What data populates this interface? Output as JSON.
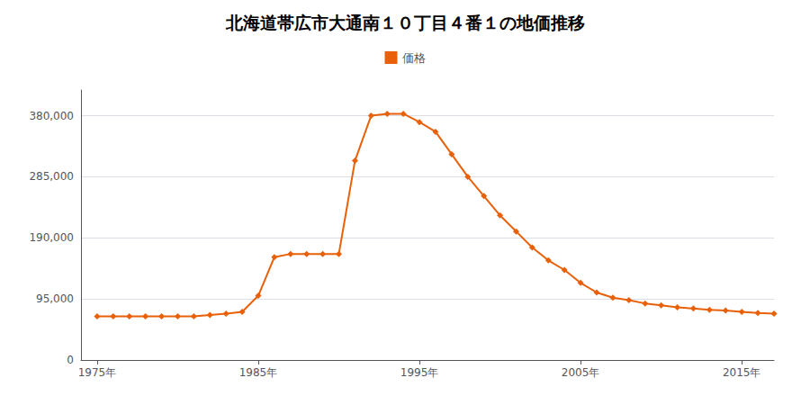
{
  "chart_data": {
    "type": "line",
    "title": "北海道帯広市大通南１０丁目４番１の地価推移",
    "x": [
      1975,
      1976,
      1977,
      1978,
      1979,
      1980,
      1981,
      1982,
      1983,
      1984,
      1985,
      1986,
      1987,
      1988,
      1989,
      1990,
      1991,
      1992,
      1993,
      1994,
      1995,
      1996,
      1997,
      1998,
      1999,
      2000,
      2001,
      2002,
      2003,
      2004,
      2005,
      2006,
      2007,
      2008,
      2009,
      2010,
      2011,
      2012,
      2013,
      2014,
      2015,
      2016,
      2017
    ],
    "series": [
      {
        "name": "価格",
        "color": "#e8610a",
        "marker": "diamond",
        "values": [
          68000,
          68000,
          68000,
          68000,
          68000,
          68000,
          68000,
          70000,
          72000,
          75000,
          100000,
          160000,
          165000,
          165000,
          165000,
          165000,
          310000,
          380000,
          383000,
          383000,
          370000,
          355000,
          320000,
          285000,
          255000,
          225000,
          200000,
          175000,
          155000,
          140000,
          120000,
          105000,
          97000,
          93000,
          88000,
          85000,
          82000,
          80000,
          78000,
          77000,
          75000,
          73000,
          72000
        ]
      }
    ],
    "xlim": [
      1974,
      2017
    ],
    "xticks": [
      {
        "value": 1975,
        "label": "1975年"
      },
      {
        "value": 1985,
        "label": "1985年"
      },
      {
        "value": 1995,
        "label": "1995年"
      },
      {
        "value": 2005,
        "label": "2005年"
      },
      {
        "value": 2015,
        "label": "2015年"
      }
    ],
    "ylim": [
      0,
      420000
    ],
    "yticks": [
      0,
      {
        "value": 95000,
        "label": "95,000"
      },
      {
        "value": 190000,
        "label": "190,000"
      },
      {
        "value": 285000,
        "label": "285,000"
      },
      {
        "value": 380000,
        "label": "380,000"
      }
    ],
    "grid": true,
    "legend": "top"
  }
}
